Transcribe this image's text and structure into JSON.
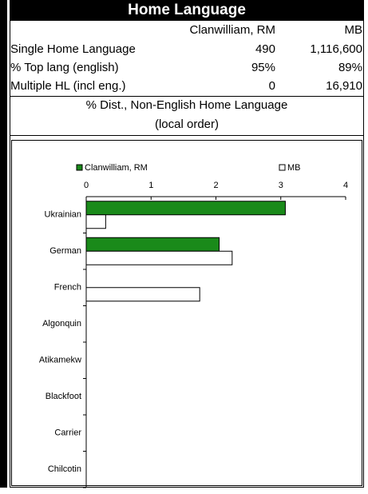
{
  "header": {
    "title": "Home Language"
  },
  "table": {
    "columns": [
      "Clanwilliam, RM",
      "MB"
    ],
    "rows": [
      [
        "Single Home Language",
        "490",
        "1,116,600"
      ],
      [
        "% Top lang (english)",
        "95%",
        "89%"
      ],
      [
        "Multiple HL (incl eng.)",
        "0",
        "16,910"
      ]
    ]
  },
  "section": {
    "title": "% Dist., Non-English Home Language",
    "subtitle": "(local order)"
  },
  "chart_data": {
    "type": "hbar",
    "categories": [
      "Ukrainian",
      "German",
      "French",
      "Algonquin",
      "Atikamekw",
      "Blackfoot",
      "Carrier",
      "Chilcotin"
    ],
    "series": [
      {
        "name": "Clanwilliam, RM",
        "color": "#1a8a1a",
        "values": [
          3.07,
          2.05,
          0,
          0,
          0,
          0,
          0,
          0
        ]
      },
      {
        "name": "MB",
        "color": "#ffffff",
        "values": [
          0.3,
          2.25,
          1.75,
          0,
          0,
          0,
          0,
          0
        ]
      }
    ],
    "xlim": [
      0,
      4
    ],
    "xticks": [
      0,
      1,
      2,
      3,
      4
    ]
  }
}
